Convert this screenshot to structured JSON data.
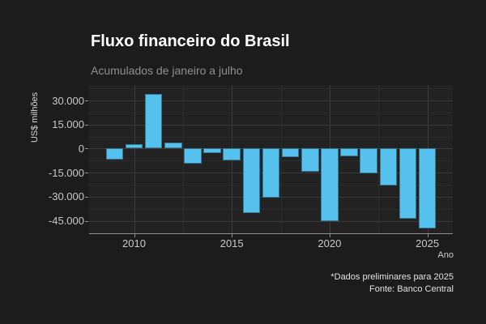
{
  "header": {
    "title": "Fluxo financeiro do Brasil",
    "subtitle": "Acumulados de janeiro a julho"
  },
  "footer": {
    "note": "*Dados preliminares para 2025",
    "source": "Fonte: Banco Central"
  },
  "chart_data": {
    "type": "bar",
    "title": "Fluxo financeiro do Brasil",
    "subtitle": "Acumulados de janeiro a julho",
    "xlabel": "Ano",
    "ylabel": "US$ milhões",
    "x": [
      2009,
      2010,
      2011,
      2012,
      2013,
      2014,
      2015,
      2016,
      2017,
      2018,
      2019,
      2020,
      2021,
      2022,
      2023,
      2024,
      2025
    ],
    "values": [
      -7000,
      3000,
      34000,
      4000,
      -9500,
      -3000,
      -7500,
      -40000,
      -30500,
      -5500,
      -14500,
      -45500,
      -5000,
      -15500,
      -23000,
      -43500,
      -50000
    ],
    "x_ticks": [
      2010,
      2015,
      2020,
      2025
    ],
    "x_minor_ticks": [
      2012.5,
      2017.5,
      2022.5
    ],
    "y_ticks": [
      30000,
      15000,
      0,
      -15000,
      -30000,
      -45000
    ],
    "y_tick_labels": [
      "30.000",
      "15.000",
      "0",
      "-15.000",
      "-30.000",
      "-45.000"
    ],
    "y_minor_ticks": [
      37500,
      22500,
      7500,
      -7500,
      -22500,
      -37500
    ],
    "xlim": [
      2007.7,
      2026.3
    ],
    "ylim": [
      -52800,
      39600
    ],
    "bar_width_years": 0.9,
    "grid": "major+minor",
    "legend": false,
    "note": "*Dados preliminares para 2025",
    "source": "Fonte: Banco Central"
  },
  "colors": {
    "page_bg": "#1c1c1c",
    "panel_bg": "#222222",
    "grid_major": "#3b3b3b",
    "grid_minor": "#2d2d2d",
    "axis_line": "#8f8f8f",
    "tick_label": "#c9c9c9",
    "title": "#ffffff",
    "subtitle": "#8f8f8f",
    "footer_text": "#e3e3e3",
    "bar": "#57c1ee"
  }
}
